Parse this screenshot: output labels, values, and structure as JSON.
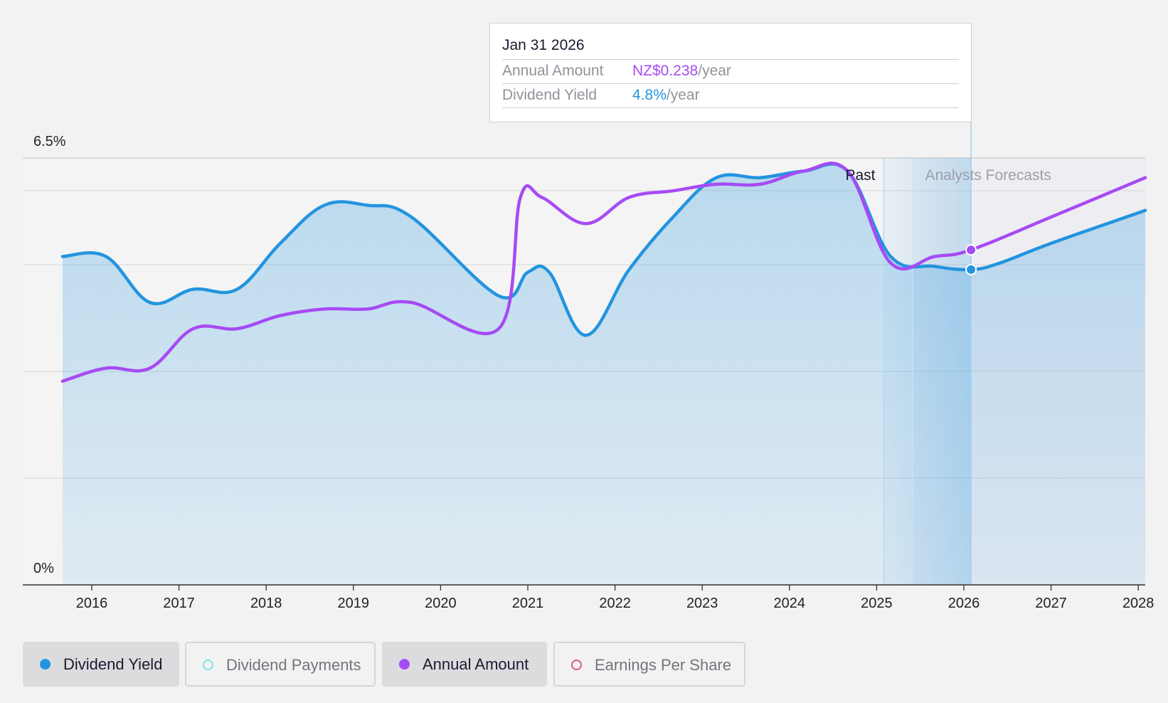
{
  "tooltip": {
    "date": "Jan 31 2026",
    "rows": [
      {
        "label": "Annual Amount",
        "value": "NZ$0.238",
        "unit": "/year"
      },
      {
        "label": "Dividend Yield",
        "value": "4.8%",
        "unit": "/year"
      }
    ]
  },
  "legend": {
    "items": [
      {
        "label": "Dividend Yield",
        "color": "#2394df",
        "active": true,
        "filled": true
      },
      {
        "label": "Dividend Payments",
        "color": "#7de3e0",
        "active": false,
        "filled": false
      },
      {
        "label": "Annual Amount",
        "color": "#a64bf4",
        "active": true,
        "filled": true
      },
      {
        "label": "Earnings Per Share",
        "color": "#d7578e",
        "active": false,
        "filled": false
      }
    ]
  },
  "chart_data": {
    "type": "line",
    "ylim": [
      0,
      6.5
    ],
    "y_unit": "%",
    "y_labels": [
      "6.5%",
      "0%"
    ],
    "x_ticks": [
      "2016",
      "2017",
      "2018",
      "2019",
      "2020",
      "2021",
      "2022",
      "2023",
      "2024",
      "2025",
      "2026",
      "2027",
      "2028"
    ],
    "regions": {
      "past_label": "Past",
      "forecast_label": "Analysts Forecasts",
      "past_end": "2025-01-31",
      "forecast_start": "2025-06-01",
      "cursor": "2026-01-31"
    },
    "series": [
      {
        "name": "Dividend Yield",
        "color": "#2394df",
        "area": true,
        "points": [
          [
            "2015-09-01",
            5.0
          ],
          [
            "2016-03-01",
            5.0
          ],
          [
            "2016-09-01",
            4.3
          ],
          [
            "2017-03-01",
            4.5
          ],
          [
            "2017-09-01",
            4.5
          ],
          [
            "2018-03-01",
            5.2
          ],
          [
            "2018-09-01",
            5.78
          ],
          [
            "2019-03-01",
            5.78
          ],
          [
            "2019-09-01",
            5.6
          ],
          [
            "2020-09-01",
            4.4
          ],
          [
            "2021-01-01",
            4.76
          ],
          [
            "2021-04-01",
            4.76
          ],
          [
            "2021-09-01",
            3.8
          ],
          [
            "2022-03-01",
            4.8
          ],
          [
            "2022-09-01",
            5.6
          ],
          [
            "2023-03-01",
            6.2
          ],
          [
            "2023-09-01",
            6.2
          ],
          [
            "2024-03-01",
            6.3
          ],
          [
            "2024-09-01",
            6.3
          ],
          [
            "2025-03-01",
            5.0
          ],
          [
            "2025-09-01",
            4.85
          ],
          [
            "2026-01-31",
            4.8
          ],
          [
            "2026-06-01",
            4.9
          ],
          [
            "2027-01-01",
            5.2
          ],
          [
            "2028-03-01",
            5.7
          ]
        ]
      },
      {
        "name": "Annual Amount",
        "color": "#a64bf4",
        "area": false,
        "points": [
          [
            "2015-09-01",
            3.1
          ],
          [
            "2016-03-01",
            3.3
          ],
          [
            "2016-09-01",
            3.3
          ],
          [
            "2017-03-01",
            3.9
          ],
          [
            "2017-09-01",
            3.9
          ],
          [
            "2018-03-01",
            4.1
          ],
          [
            "2018-09-01",
            4.2
          ],
          [
            "2019-03-01",
            4.2
          ],
          [
            "2019-09-01",
            4.3
          ],
          [
            "2020-09-01",
            3.9
          ],
          [
            "2020-12-01",
            5.9
          ],
          [
            "2021-03-01",
            5.9
          ],
          [
            "2021-09-01",
            5.5
          ],
          [
            "2022-03-01",
            5.9
          ],
          [
            "2022-09-01",
            6.0
          ],
          [
            "2023-03-01",
            6.1
          ],
          [
            "2023-09-01",
            6.1
          ],
          [
            "2024-03-01",
            6.3
          ],
          [
            "2024-09-01",
            6.3
          ],
          [
            "2025-03-01",
            4.9
          ],
          [
            "2025-09-01",
            5.0
          ],
          [
            "2026-01-31",
            5.1
          ],
          [
            "2027-01-01",
            5.6
          ],
          [
            "2028-03-01",
            6.2
          ]
        ]
      }
    ]
  }
}
